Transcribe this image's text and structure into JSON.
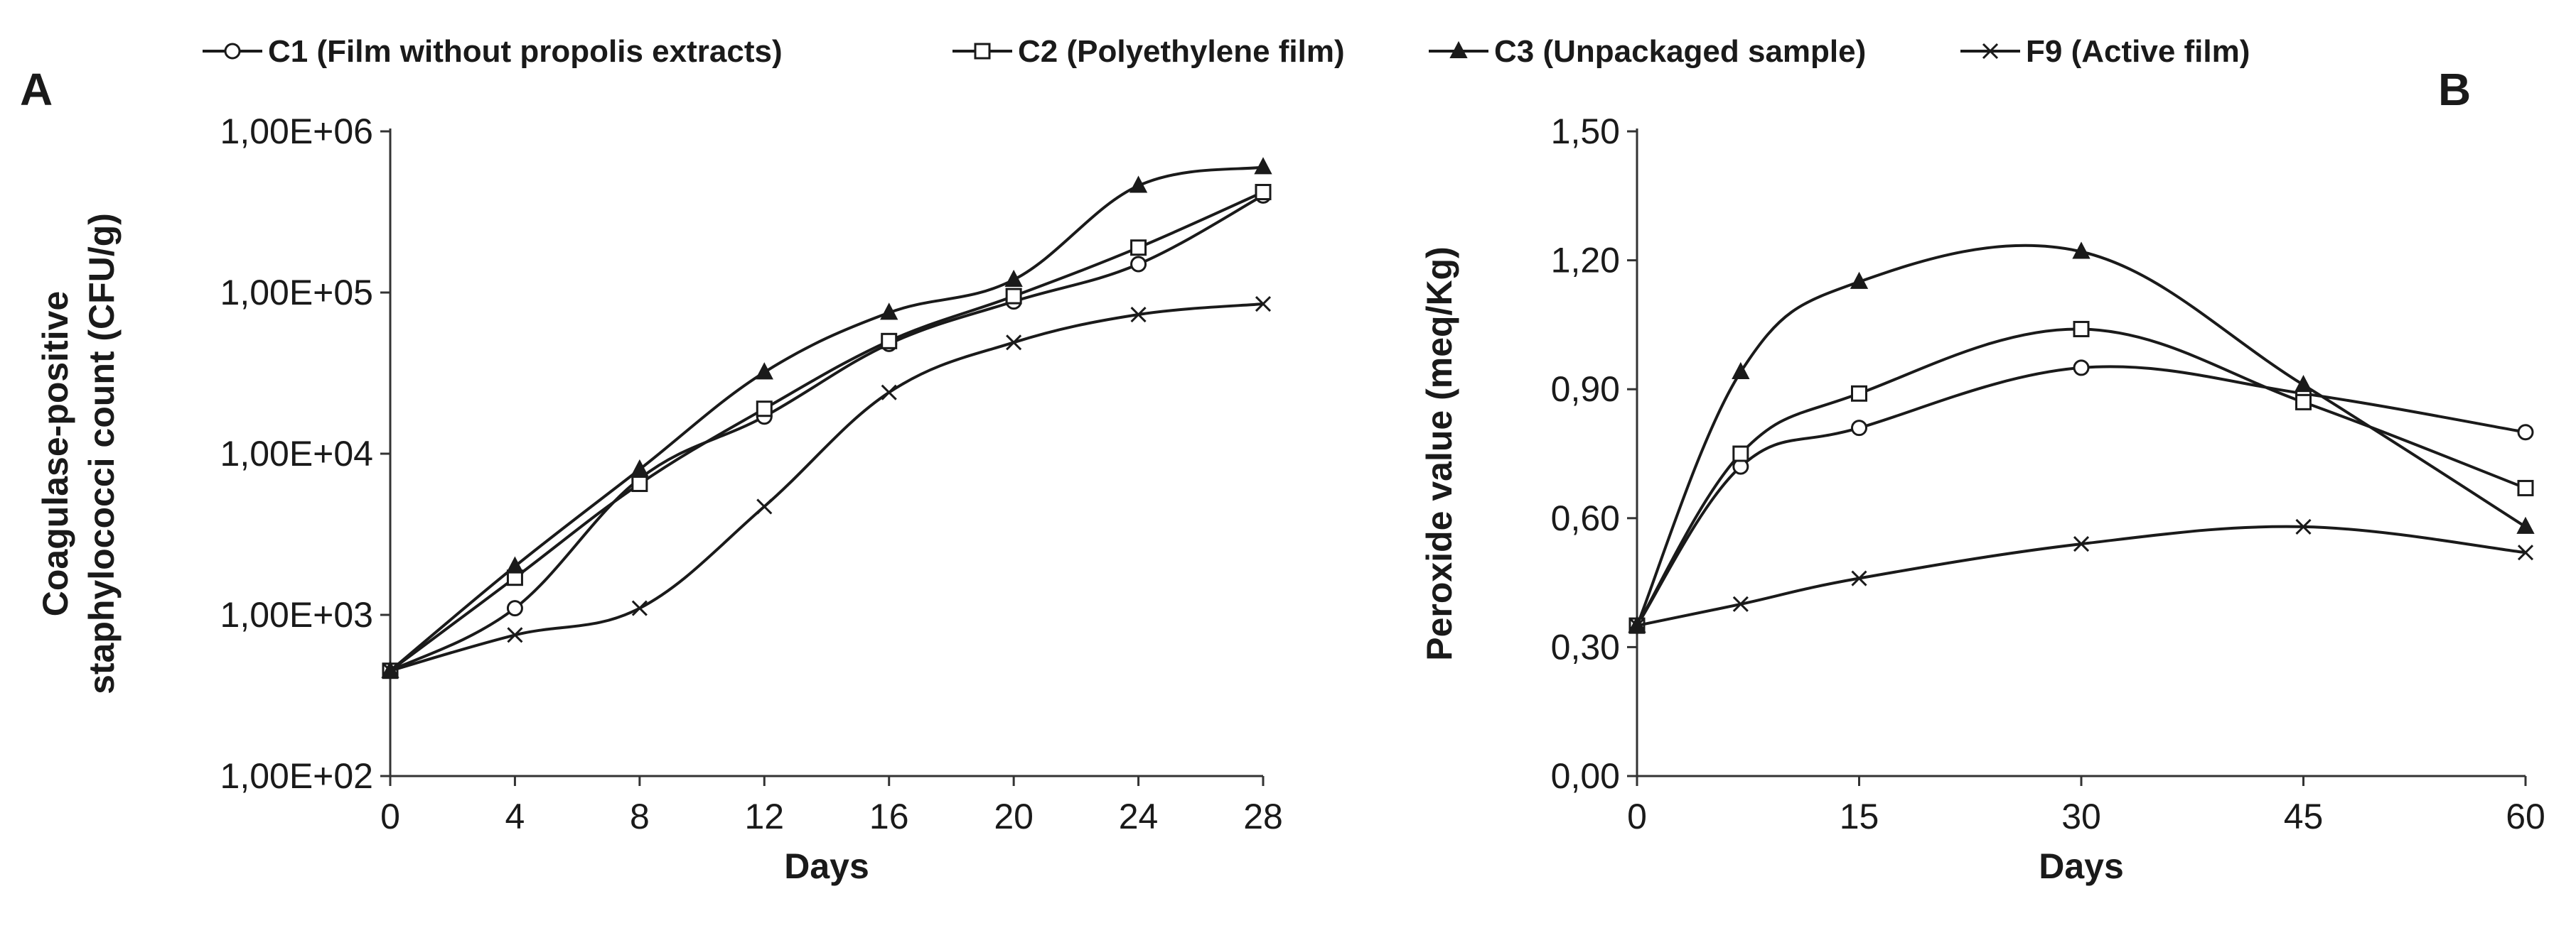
{
  "legend": [
    {
      "id": "C1",
      "label": "C1 (Film without propolis extracts)",
      "marker": "circle"
    },
    {
      "id": "C2",
      "label": "C2 (Polyethylene film)",
      "marker": "square"
    },
    {
      "id": "C3",
      "label": "C3 (Unpackaged sample)",
      "marker": "triangle"
    },
    {
      "id": "F9",
      "label": "F9 (Active film)",
      "marker": "x"
    }
  ],
  "chart_data": [
    {
      "panel": "A",
      "type": "line",
      "title": "",
      "xlabel": "Days",
      "ylabel_line1": "Coagulase-positive",
      "ylabel_line2": "staphylococci count (CFU/g)",
      "yscale": "log",
      "xlim": [
        0,
        28
      ],
      "ylim": [
        100,
        1000000
      ],
      "x_ticks": [
        0,
        4,
        8,
        12,
        16,
        20,
        24,
        28
      ],
      "x_tick_labels": [
        "0",
        "4",
        "8",
        "12",
        "16",
        "20",
        "24",
        "28"
      ],
      "y_ticks": [
        100,
        1000,
        10000,
        100000,
        1000000
      ],
      "y_tick_labels": [
        "1,00E+02",
        "1,00E+03",
        "1,00E+04",
        "1,00E+05",
        "1,00E+06"
      ],
      "x": [
        0,
        4,
        8,
        12,
        16,
        20,
        24,
        28
      ],
      "series": [
        {
          "name": "C1",
          "values": [
            450,
            1100,
            7000,
            17000,
            48000,
            88000,
            150000,
            400000
          ]
        },
        {
          "name": "C2",
          "values": [
            450,
            1700,
            6500,
            19000,
            50000,
            95000,
            190000,
            420000
          ]
        },
        {
          "name": "C3",
          "values": [
            450,
            2000,
            8000,
            32000,
            75000,
            120000,
            460000,
            600000
          ]
        },
        {
          "name": "F9",
          "values": [
            450,
            750,
            1100,
            4700,
            24000,
            49000,
            73000,
            85000
          ]
        }
      ]
    },
    {
      "panel": "B",
      "type": "line",
      "title": "",
      "xlabel": "Days",
      "ylabel": "Peroxide value (meq/Kg)",
      "xlim": [
        0,
        60
      ],
      "ylim": [
        0,
        1.5
      ],
      "x_ticks": [
        0,
        15,
        30,
        45,
        60
      ],
      "x_tick_labels": [
        "0",
        "15",
        "30",
        "45",
        "60"
      ],
      "y_ticks": [
        0,
        0.3,
        0.6,
        0.9,
        1.2,
        1.5
      ],
      "y_tick_labels": [
        "0,00",
        "0,30",
        "0,60",
        "0,90",
        "1,20",
        "1,50"
      ],
      "x": [
        0,
        7,
        15,
        30,
        45,
        60
      ],
      "series": [
        {
          "name": "C1",
          "values": [
            0.35,
            0.72,
            0.81,
            0.95,
            0.89,
            0.8
          ]
        },
        {
          "name": "C2",
          "values": [
            0.35,
            0.75,
            0.89,
            1.04,
            0.87,
            0.67
          ]
        },
        {
          "name": "C3",
          "values": [
            0.35,
            0.94,
            1.15,
            1.22,
            0.91,
            0.58
          ]
        },
        {
          "name": "F9",
          "values": [
            0.35,
            0.4,
            0.46,
            0.54,
            0.58,
            0.52
          ]
        }
      ]
    }
  ]
}
